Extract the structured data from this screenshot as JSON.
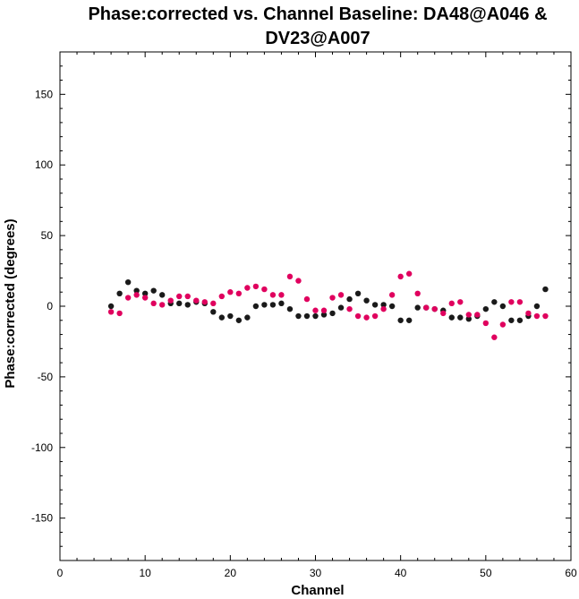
{
  "chart_data": {
    "type": "scatter",
    "title_lines": [
      "Phase:corrected vs. Channel Baseline: DA48@A046 &",
      "DV23@A007"
    ],
    "xlabel": "Channel",
    "ylabel": "Phase:corrected (degrees)",
    "xlim": [
      0,
      60
    ],
    "ylim": [
      -180,
      180
    ],
    "xticks": [
      0,
      10,
      20,
      30,
      40,
      50,
      60
    ],
    "yticks": [
      -150,
      -100,
      -50,
      0,
      50,
      100,
      150
    ],
    "grid": false,
    "series": [
      {
        "color": "#1a1a1a",
        "x": [
          6,
          7,
          8,
          9,
          10,
          11,
          12,
          13,
          14,
          15,
          16,
          17,
          18,
          19,
          20,
          21,
          22,
          23,
          24,
          25,
          26,
          27,
          28,
          29,
          30,
          31,
          32,
          33,
          34,
          35,
          36,
          37,
          38,
          39,
          40,
          41,
          42,
          43,
          44,
          45,
          46,
          47,
          48,
          49,
          50,
          51,
          52,
          53,
          54,
          55,
          56,
          57
        ],
        "y": [
          0,
          9,
          17,
          11,
          9,
          11,
          8,
          2,
          2,
          1,
          3,
          2,
          -4,
          -8,
          -7,
          -10,
          -8,
          0,
          1,
          1,
          2,
          -2,
          -7,
          -7,
          -7,
          -6,
          -5,
          -1,
          5,
          9,
          4,
          1,
          1,
          0,
          -10,
          -10,
          -1,
          -1,
          -2,
          -3,
          -8,
          -8,
          -9,
          -7,
          -2,
          3,
          0,
          -10,
          -10,
          -7,
          0,
          12
        ]
      },
      {
        "color": "#e0005e",
        "x": [
          6,
          7,
          8,
          9,
          10,
          11,
          12,
          13,
          14,
          15,
          16,
          17,
          18,
          19,
          20,
          21,
          22,
          23,
          24,
          25,
          26,
          27,
          28,
          29,
          30,
          31,
          32,
          33,
          34,
          35,
          36,
          37,
          38,
          39,
          40,
          41,
          42,
          43,
          44,
          45,
          46,
          47,
          48,
          49,
          50,
          51,
          52,
          53,
          54,
          55,
          56,
          57
        ],
        "y": [
          -4,
          -5,
          6,
          8,
          6,
          2,
          1,
          4,
          7,
          7,
          4,
          3,
          2,
          7,
          10,
          9,
          13,
          14,
          12,
          8,
          8,
          21,
          18,
          5,
          -3,
          -3,
          6,
          8,
          -2,
          -7,
          -8,
          -7,
          -2,
          8,
          21,
          23,
          9,
          -1,
          -2,
          -5,
          2,
          3,
          -6,
          -6,
          -12,
          -22,
          -13,
          3,
          3,
          -5,
          -7,
          -7
        ]
      }
    ]
  }
}
